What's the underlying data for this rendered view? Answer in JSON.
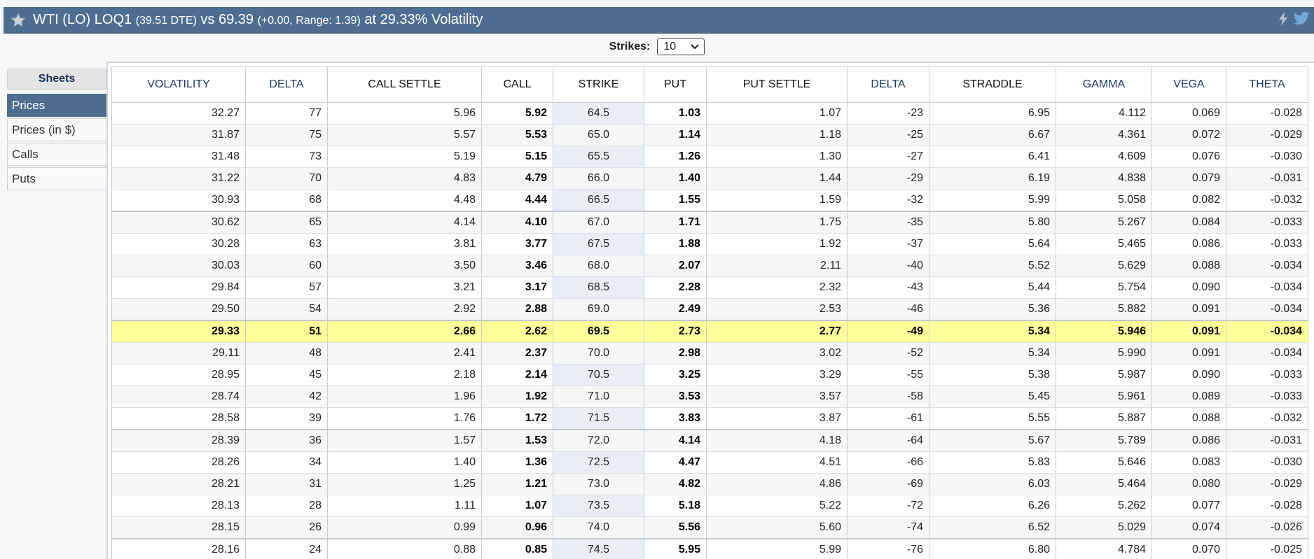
{
  "header": {
    "title_main": "WTI (LO) LOQ1",
    "dte": "(39.51 DTE)",
    "vs_label": "vs 69.39",
    "change_range": "(+0.00,  Range: 1.39)",
    "volatility_text": "at 29.33% Volatility",
    "icons": [
      "star-icon",
      "flash-icon",
      "twitter-icon"
    ],
    "colors": {
      "bar": "#4e6e91",
      "highlight": "#ffff99",
      "strike_col": "#e9eef6"
    }
  },
  "strikes": {
    "label": "Strikes:",
    "value": "10"
  },
  "sidebar": {
    "title": "Sheets",
    "items": [
      {
        "label": "Prices",
        "active": true
      },
      {
        "label": "Prices (in $)",
        "active": false
      },
      {
        "label": "Calls",
        "active": false
      },
      {
        "label": "Puts",
        "active": false
      }
    ]
  },
  "table": {
    "columns": [
      "VOLATILITY",
      "DELTA",
      "CALL SETTLE",
      "CALL",
      "STRIKE",
      "PUT",
      "PUT SETTLE",
      "DELTA",
      "STRADDLE",
      "GAMMA",
      "VEGA",
      "THETA"
    ],
    "rows": [
      [
        "32.27",
        "77",
        "5.96",
        "5.92",
        "64.5",
        "1.03",
        "1.07",
        "-23",
        "6.95",
        "4.112",
        "0.069",
        "-0.028"
      ],
      [
        "31.87",
        "75",
        "5.57",
        "5.53",
        "65.0",
        "1.14",
        "1.18",
        "-25",
        "6.67",
        "4.361",
        "0.072",
        "-0.029"
      ],
      [
        "31.48",
        "73",
        "5.19",
        "5.15",
        "65.5",
        "1.26",
        "1.30",
        "-27",
        "6.41",
        "4.609",
        "0.076",
        "-0.030"
      ],
      [
        "31.22",
        "70",
        "4.83",
        "4.79",
        "66.0",
        "1.40",
        "1.44",
        "-29",
        "6.19",
        "4.838",
        "0.079",
        "-0.031"
      ],
      [
        "30.93",
        "68",
        "4.48",
        "4.44",
        "66.5",
        "1.55",
        "1.59",
        "-32",
        "5.99",
        "5.058",
        "0.082",
        "-0.032"
      ],
      [
        "30.62",
        "65",
        "4.14",
        "4.10",
        "67.0",
        "1.71",
        "1.75",
        "-35",
        "5.80",
        "5.267",
        "0.084",
        "-0.033"
      ],
      [
        "30.28",
        "63",
        "3.81",
        "3.77",
        "67.5",
        "1.88",
        "1.92",
        "-37",
        "5.64",
        "5.465",
        "0.086",
        "-0.033"
      ],
      [
        "30.03",
        "60",
        "3.50",
        "3.46",
        "68.0",
        "2.07",
        "2.11",
        "-40",
        "5.52",
        "5.629",
        "0.088",
        "-0.034"
      ],
      [
        "29.84",
        "57",
        "3.21",
        "3.17",
        "68.5",
        "2.28",
        "2.32",
        "-43",
        "5.44",
        "5.754",
        "0.090",
        "-0.034"
      ],
      [
        "29.50",
        "54",
        "2.92",
        "2.88",
        "69.0",
        "2.49",
        "2.53",
        "-46",
        "5.36",
        "5.882",
        "0.091",
        "-0.034"
      ],
      [
        "29.33",
        "51",
        "2.66",
        "2.62",
        "69.5",
        "2.73",
        "2.77",
        "-49",
        "5.34",
        "5.946",
        "0.091",
        "-0.034"
      ],
      [
        "29.11",
        "48",
        "2.41",
        "2.37",
        "70.0",
        "2.98",
        "3.02",
        "-52",
        "5.34",
        "5.990",
        "0.091",
        "-0.034"
      ],
      [
        "28.95",
        "45",
        "2.18",
        "2.14",
        "70.5",
        "3.25",
        "3.29",
        "-55",
        "5.38",
        "5.987",
        "0.090",
        "-0.033"
      ],
      [
        "28.74",
        "42",
        "1.96",
        "1.92",
        "71.0",
        "3.53",
        "3.57",
        "-58",
        "5.45",
        "5.961",
        "0.089",
        "-0.033"
      ],
      [
        "28.58",
        "39",
        "1.76",
        "1.72",
        "71.5",
        "3.83",
        "3.87",
        "-61",
        "5.55",
        "5.887",
        "0.088",
        "-0.032"
      ],
      [
        "28.39",
        "36",
        "1.57",
        "1.53",
        "72.0",
        "4.14",
        "4.18",
        "-64",
        "5.67",
        "5.789",
        "0.086",
        "-0.031"
      ],
      [
        "28.26",
        "34",
        "1.40",
        "1.36",
        "72.5",
        "4.47",
        "4.51",
        "-66",
        "5.83",
        "5.646",
        "0.083",
        "-0.030"
      ],
      [
        "28.21",
        "31",
        "1.25",
        "1.21",
        "73.0",
        "4.82",
        "4.86",
        "-69",
        "6.03",
        "5.464",
        "0.080",
        "-0.029"
      ],
      [
        "28.13",
        "28",
        "1.11",
        "1.07",
        "73.5",
        "5.18",
        "5.22",
        "-72",
        "6.26",
        "5.262",
        "0.077",
        "-0.028"
      ],
      [
        "28.15",
        "26",
        "0.99",
        "0.96",
        "74.0",
        "5.56",
        "5.60",
        "-74",
        "6.52",
        "5.029",
        "0.074",
        "-0.026"
      ],
      [
        "28.16",
        "24",
        "0.88",
        "0.85",
        "74.5",
        "5.95",
        "5.99",
        "-76",
        "6.80",
        "4.784",
        "0.070",
        "-0.025"
      ]
    ],
    "highlight_row": 10
  }
}
